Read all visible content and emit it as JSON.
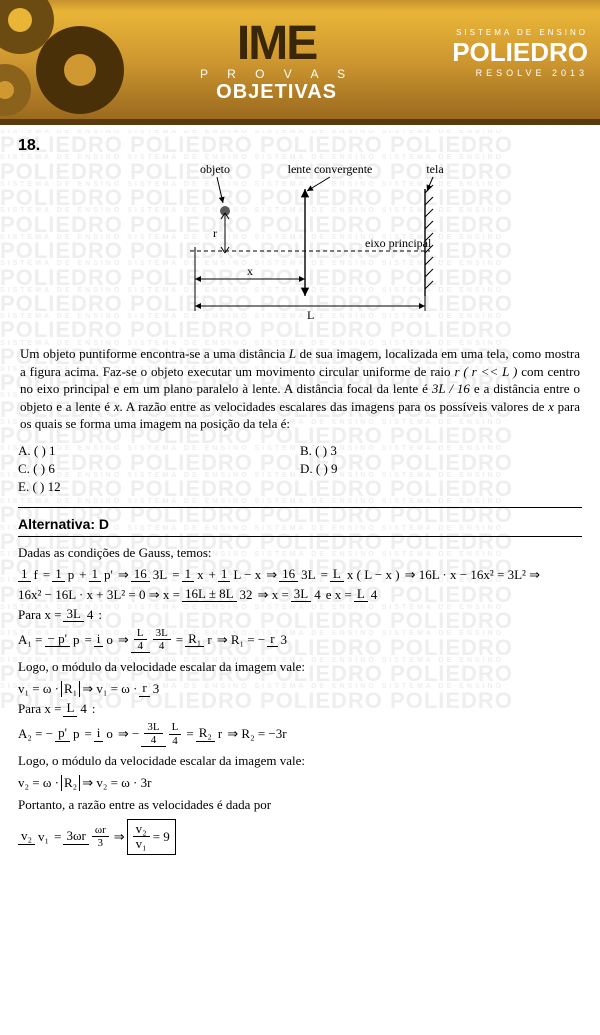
{
  "banner": {
    "ime": "IME",
    "provas": "P R O V A S",
    "objetivas": "OBJETIVAS",
    "sys": "SISTEMA DE ENSINO",
    "logo": "POLIEDRO",
    "resolve": "RESOLVE 2013",
    "bg_grad_top": "#e9b537",
    "bg_grad_bot": "#9a6a1f",
    "gear_colors": [
      "#6b4b12",
      "#8a621c",
      "#4a3008"
    ]
  },
  "watermark": {
    "big": "POLIEDRO POLIEDRO POLIEDRO POLIEDRO",
    "small": "SISTEMA DE ENSINO    SISTEMA DE ENSINO    SISTEMA DE ENSINO    SISTEMA DE ENSINO",
    "color": "#eeeeee",
    "rows": 22
  },
  "question": {
    "number": "18.",
    "diagram": {
      "labels": {
        "objeto": "objeto",
        "lente": "lente convergente",
        "tela": "tela",
        "eixo": "eixo principal",
        "r": "r",
        "x": "x",
        "L": "L"
      },
      "stroke": "#000000",
      "obj_fill": "#5a5a5a"
    },
    "text_parts": {
      "p1": "Um objeto puntiforme encontra-se a uma distância ",
      "L1": "L",
      "p2": " de sua imagem, localizada em uma tela, como mostra a figura acima. Faz-se o objeto executar um movimento circular uniforme de raio ",
      "r_expr": "r ( r << L )",
      "p3": " com centro no eixo principal e em um plano paralelo à lente. A distância focal da lente é ",
      "f_expr": "3L / 16",
      "p4": " e a distância entre o objeto e a lente é ",
      "x1": "x",
      "p5": ". A razão entre as velocidades escalares das imagens para os possíveis valores de ",
      "x2": "x",
      "p6": " para os quais se forma uma imagem na posição da tela é:"
    },
    "options": {
      "A": "A. (    ) 1",
      "B": "B. (    ) 3",
      "C": "C. (    ) 6",
      "D": "D. (    ) 9",
      "E": "E. (    ) 12"
    },
    "answer_label": "Alternativa: D"
  },
  "solution": {
    "intro": "Dadas as condições de Gauss, temos:",
    "eq1": {
      "t1": "1",
      "t1d": "f",
      "t2": "1",
      "t2d": "p",
      "t3": "1",
      "t3d": "p'",
      "t4": "16",
      "t4d": "3L",
      "t5": "1",
      "t5d": "x",
      "t6": "1",
      "t6d": "L − x",
      "t7": "16",
      "t7d": "3L",
      "t8": "L",
      "t8d": "x ( L − x )",
      "tail": "⇒ 16L · x − 16x² = 3L² ⇒"
    },
    "eq2": {
      "lhs": "16x² − 16L · x + 3L² = 0 ⇒ x =",
      "n1": "16L ± 8L",
      "d1": "32",
      "mid": "⇒ x =",
      "n2": "3L",
      "d2": "4",
      "and": " e x =",
      "n3": "L",
      "d3": "4"
    },
    "para1_pre": "Para  x =",
    "para1_n": "3L",
    "para1_d": "4",
    "para1_post": ":",
    "eqA1": {
      "lhs": "A₁ =",
      "n1": "− p'",
      "d1": "p",
      "eq": "=",
      "n2": "i",
      "d2": "o",
      "arr": "⇒",
      "n3n": "L",
      "n3nd": "4",
      "n3d": "3L",
      "n3dd": "4",
      "eq2": "=",
      "n4": "R₁",
      "d4": "r",
      "arr2": "⇒ R₁ = −",
      "n5": "r",
      "d5": "3"
    },
    "logo1": "Logo, o módulo da velocidade escalar da imagem vale:",
    "eqv1": {
      "lhs": "v₁ = ω · ",
      "abs": "R₁",
      "arr": " ⇒ v₁ = ω · ",
      "n": "r",
      "d": "3"
    },
    "para2_pre": "Para  x =",
    "para2_n": "L",
    "para2_d": "4",
    "para2_post": ":",
    "eqA2": {
      "lhs": "A₂ = −",
      "n1": "p'",
      "d1": "p",
      "eq": "=",
      "n2": "i",
      "d2": "o",
      "arr": "⇒ −",
      "n3n": "3L",
      "n3nd": "4",
      "n3d": "L",
      "n3dd": "4",
      "eq2": "=",
      "n4": "R₂",
      "d4": "r",
      "arr2": "⇒ R₂ = −3r"
    },
    "logo2": "Logo, o módulo da velocidade escalar da imagem vale:",
    "eqv2": {
      "lhs": "v₂ = ω · ",
      "abs": "R₂",
      "arr": " ⇒ v₂ = ω · 3r"
    },
    "port": "Portanto, a razão entre as velocidades é dada por",
    "eqratio": {
      "lhs_n": "v₂",
      "lhs_d": "v₁",
      "eq": "=",
      "mid_n": "3ωr",
      "mid_d_n": "ωr",
      "mid_d_d": "3",
      "arr": "⇒",
      "box_n": "v₂",
      "box_d": "v₁",
      "box_eq": "= 9"
    }
  }
}
